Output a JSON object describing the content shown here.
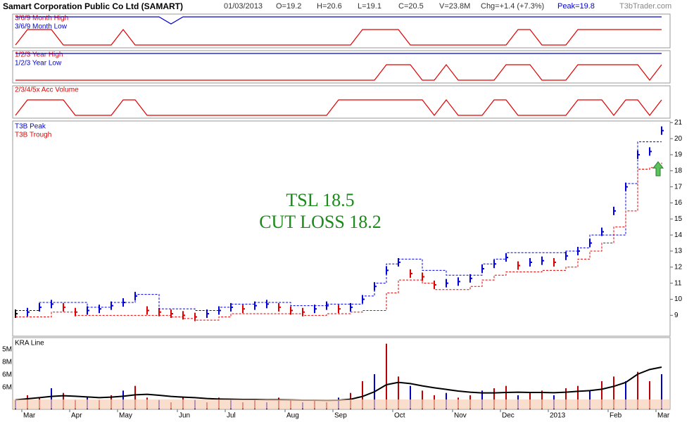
{
  "header": {
    "title": "Samart Corporation Public Co Ltd (SAMART)",
    "date": "01/03/2013",
    "open": "O=19.2",
    "high": "H=20.6",
    "low": "L=19.1",
    "close": "C=20.5",
    "volume": "V=23.8M",
    "change": "Chg=+1.4 (+7.3%)",
    "peak": "Peak=19.8",
    "site": "T3bTrader.com"
  },
  "chart_data": [
    {
      "type": "signal",
      "series": [
        {
          "name": "3/6/9 Month High",
          "color": "#e00000",
          "values": [
            0,
            1,
            1,
            1,
            0,
            0,
            0,
            0,
            0,
            1,
            0,
            0,
            0,
            0,
            0,
            0,
            0,
            0,
            0,
            0,
            0,
            0,
            0,
            0,
            0,
            0,
            0,
            0,
            0,
            1,
            1,
            1,
            1,
            0,
            0,
            0,
            0,
            0,
            0,
            0,
            0,
            0,
            1,
            1,
            0,
            0,
            0,
            1,
            1,
            1,
            1,
            1,
            1,
            1,
            1
          ]
        },
        {
          "name": "3/6/9 Month Low",
          "color": "#0000d0",
          "values": [
            0,
            0,
            0,
            0,
            0,
            0,
            0,
            0,
            0,
            0,
            0,
            0,
            0,
            1,
            0,
            0,
            0,
            0,
            0,
            0,
            0,
            0,
            0,
            0,
            0,
            0,
            0,
            0,
            0,
            0,
            0,
            0,
            0,
            0,
            0,
            0,
            0,
            0,
            0,
            0,
            0,
            0,
            0,
            0,
            0,
            0,
            0,
            0,
            0,
            0,
            0,
            0,
            0,
            0,
            0
          ]
        }
      ]
    },
    {
      "type": "signal",
      "series": [
        {
          "name": "1/2/3 Year High",
          "color": "#e00000",
          "values": [
            0,
            0,
            0,
            0,
            0,
            0,
            0,
            0,
            0,
            0,
            0,
            0,
            0,
            0,
            0,
            0,
            0,
            0,
            0,
            0,
            0,
            0,
            0,
            0,
            0,
            0,
            0,
            0,
            0,
            0,
            0,
            1,
            1,
            1,
            0,
            0,
            1,
            0,
            0,
            0,
            0,
            1,
            1,
            1,
            0,
            0,
            0,
            1,
            1,
            1,
            1,
            1,
            1,
            0,
            1
          ]
        },
        {
          "name": "1/2/3 Year Low",
          "color": "#0000d0",
          "values": [
            0,
            0,
            0,
            0,
            0,
            0,
            0,
            0,
            0,
            0,
            0,
            0,
            0,
            0,
            0,
            0,
            0,
            0,
            0,
            0,
            0,
            0,
            0,
            0,
            0,
            0,
            0,
            0,
            0,
            0,
            0,
            0,
            0,
            0,
            0,
            0,
            0,
            0,
            0,
            0,
            0,
            0,
            0,
            0,
            0,
            0,
            0,
            0,
            0,
            0,
            0,
            0,
            0,
            0,
            0
          ]
        }
      ]
    },
    {
      "type": "signal",
      "series": [
        {
          "name": "2/3/4/5x Acc Volume",
          "color": "#e00000",
          "values": [
            0,
            1,
            1,
            1,
            1,
            0,
            0,
            0,
            0,
            1,
            1,
            0,
            0,
            0,
            0,
            0,
            0,
            0,
            0,
            0,
            0,
            0,
            0,
            0,
            0,
            0,
            0,
            1,
            1,
            1,
            1,
            1,
            1,
            1,
            1,
            0,
            1,
            0,
            0,
            0,
            1,
            1,
            0,
            0,
            0,
            0,
            0,
            1,
            1,
            1,
            0,
            1,
            1,
            0,
            1
          ]
        }
      ]
    },
    {
      "type": "price",
      "ylim": [
        7.7,
        21.1
      ],
      "yticks": [
        9,
        10,
        11,
        12,
        13,
        14,
        15,
        16,
        17,
        18,
        19,
        20,
        21
      ],
      "annotations": [
        "TSL 18.5",
        "CUT LOSS 18.2"
      ],
      "series": [
        {
          "color": "#0000e0",
          "values": [
            9.1,
            9.2,
            9.5,
            9.7,
            9.5,
            9.2,
            9.3,
            9.4,
            9.6,
            9.8,
            10.2,
            9.3,
            9.2,
            9.1,
            9.0,
            8.9,
            9.1,
            9.3,
            9.5,
            9.4,
            9.6,
            9.7,
            9.5,
            9.3,
            9.2,
            9.4,
            9.6,
            9.4,
            9.5,
            10.0,
            10.8,
            11.8,
            12.3,
            11.6,
            11.4,
            10.9,
            11.0,
            11.1,
            11.3,
            11.9,
            12.2,
            12.6,
            12.1,
            12.3,
            12.4,
            12.3,
            12.7,
            13.0,
            13.5,
            14.2,
            15.5,
            17.0,
            19.0,
            19.2,
            20.5
          ]
        },
        {
          "name": "T3B Peak",
          "color": "#0000e0",
          "values": [
            9.3,
            9.3,
            9.8,
            9.8,
            9.8,
            9.8,
            9.5,
            9.5,
            9.8,
            9.8,
            10.3,
            10.3,
            9.4,
            9.4,
            9.4,
            9.3,
            9.3,
            9.5,
            9.7,
            9.7,
            9.8,
            9.8,
            9.8,
            9.6,
            9.6,
            9.6,
            9.7,
            9.7,
            9.7,
            10.2,
            11.0,
            12.2,
            12.5,
            12.5,
            11.8,
            11.8,
            11.5,
            11.5,
            11.5,
            12.2,
            12.5,
            12.9,
            12.9,
            12.9,
            12.9,
            12.9,
            13.0,
            13.2,
            14.0,
            14.0,
            14.0,
            17.2,
            19.8,
            19.8,
            19.8
          ]
        },
        {
          "name": "T3B Trough",
          "color": "#e00000",
          "values": [
            8.9,
            8.9,
            8.9,
            9.2,
            9.2,
            9.0,
            9.0,
            9.0,
            9.0,
            9.0,
            9.0,
            9.0,
            9.0,
            8.9,
            8.8,
            8.7,
            8.7,
            8.9,
            9.1,
            9.1,
            9.1,
            9.1,
            9.1,
            9.1,
            9.0,
            9.0,
            9.1,
            9.1,
            9.2,
            9.3,
            9.3,
            10.4,
            11.2,
            11.2,
            11.0,
            10.6,
            10.6,
            10.6,
            10.8,
            11.2,
            11.5,
            11.7,
            11.7,
            11.7,
            11.8,
            11.8,
            12.0,
            12.5,
            13.0,
            13.5,
            14.5,
            15.5,
            18.1,
            18.2,
            18.5
          ]
        }
      ]
    },
    {
      "type": "volume",
      "ylim": [
        0,
        30
      ],
      "tick_labels": [
        "5M",
        "8M",
        "6M",
        "6M"
      ],
      "categories": [
        null,
        "Mar",
        null,
        null,
        null,
        "Apr",
        null,
        null,
        null,
        "May",
        null,
        null,
        null,
        null,
        "Jun",
        null,
        null,
        null,
        "Jul",
        null,
        null,
        null,
        null,
        "Aug",
        null,
        null,
        null,
        "Sep",
        null,
        null,
        null,
        null,
        "Oct",
        null,
        null,
        null,
        null,
        "Nov",
        null,
        null,
        null,
        "Dec",
        null,
        null,
        null,
        "2013",
        null,
        null,
        null,
        null,
        "Feb",
        null,
        null,
        null,
        "Mar"
      ],
      "series": [
        {
          "color": "#c00000",
          "values": [
            4,
            6,
            5,
            9,
            7,
            4,
            5,
            4,
            6,
            8,
            10,
            5,
            4,
            3,
            5,
            4,
            3,
            5,
            4,
            3,
            4,
            3,
            5,
            4,
            3,
            4,
            3,
            5,
            7,
            12,
            15,
            28,
            14,
            10,
            8,
            6,
            7,
            5,
            6,
            8,
            9,
            10,
            6,
            7,
            8,
            6,
            9,
            10,
            8,
            12,
            14,
            12,
            16,
            12,
            15
          ]
        },
        {
          "name": "KRA Line",
          "color": "#000000",
          "values": [
            4,
            4.5,
            5,
            5.5,
            5.8,
            5.6,
            5.3,
            5,
            5.2,
            5.6,
            6.2,
            6.4,
            6,
            5.5,
            5.2,
            5,
            4.6,
            4.4,
            4.3,
            4.2,
            4.2,
            4.1,
            4.1,
            4,
            3.9,
            3.9,
            3.8,
            3.9,
            4.3,
            5.5,
            7.5,
            10.5,
            11.5,
            11,
            10,
            9.2,
            8.5,
            7.8,
            7.3,
            7,
            7,
            7.2,
            7.3,
            7.2,
            7.2,
            7.1,
            7.3,
            7.7,
            8,
            8.6,
            9.8,
            11.5,
            15,
            17,
            18
          ]
        }
      ]
    }
  ]
}
